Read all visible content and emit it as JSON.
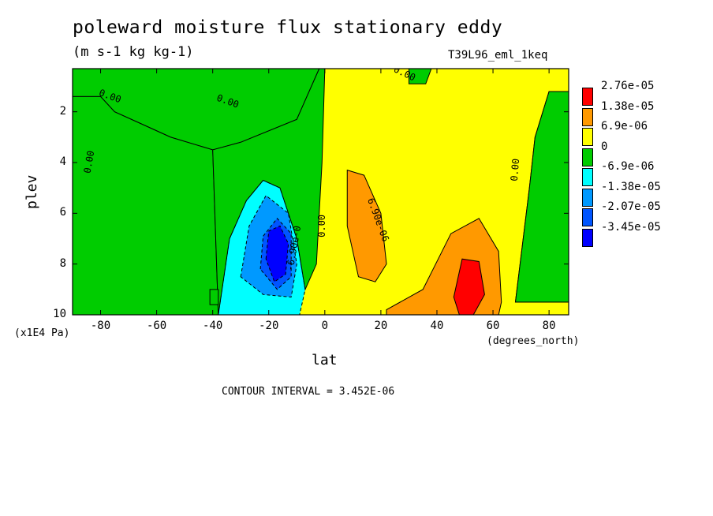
{
  "chart_data": {
    "type": "heatmap",
    "title": "poleward moisture flux stationary eddy",
    "units": "(m s-1 kg kg-1)",
    "run_label": "T39L96_eml_1keq",
    "xlabel": "lat",
    "xunit": "(degrees_north)",
    "ylabel": "plev",
    "yunit": "(x1E4 Pa)",
    "contour_interval_text": "CONTOUR INTERVAL = 3.452E-06",
    "xlim": [
      -90,
      87
    ],
    "ylim": [
      10,
      0.3
    ],
    "x_ticks": [
      {
        "v": -80,
        "t": "-80"
      },
      {
        "v": -60,
        "t": "-60"
      },
      {
        "v": -40,
        "t": "-40"
      },
      {
        "v": -20,
        "t": "-20"
      },
      {
        "v": 0,
        "t": "0"
      },
      {
        "v": 20,
        "t": "20"
      },
      {
        "v": 40,
        "t": "40"
      },
      {
        "v": 60,
        "t": "60"
      },
      {
        "v": 80,
        "t": "80"
      }
    ],
    "y_ticks": [
      {
        "v": 2,
        "t": "2"
      },
      {
        "v": 4,
        "t": "4"
      },
      {
        "v": 6,
        "t": "6"
      },
      {
        "v": 8,
        "t": "8"
      },
      {
        "v": 10,
        "t": "10"
      }
    ],
    "legend": [
      {
        "label": "2.76e-05",
        "color": "#ff0000"
      },
      {
        "label": "1.38e-05",
        "color": "#ff9900"
      },
      {
        "label": "6.9e-06",
        "color": "#ffff00"
      },
      {
        "label": "0",
        "color": "#00cc00"
      },
      {
        "label": "-6.9e-06",
        "color": "#00ffff"
      },
      {
        "label": "-1.38e-05",
        "color": "#0099ff"
      },
      {
        "label": "-2.07e-05",
        "color": "#0055ff"
      },
      {
        "label": "-3.45e-05",
        "color": "#0000ff"
      }
    ],
    "regions": [
      {
        "level": "positive",
        "color": "#ffff00",
        "points": [
          [
            -90,
            0.3
          ],
          [
            87,
            0.3
          ],
          [
            87,
            1.2
          ],
          [
            80,
            1.2
          ],
          [
            75,
            3
          ],
          [
            73,
            5
          ],
          [
            68,
            9.5
          ],
          [
            87,
            9.5
          ],
          [
            87,
            10
          ],
          [
            -90,
            10
          ],
          [
            -90,
            1.4
          ],
          [
            -80,
            1.4
          ],
          [
            -75,
            2
          ],
          [
            -65,
            2.5
          ],
          [
            -55,
            3
          ],
          [
            -40,
            3.5
          ],
          [
            -30,
            3.2
          ],
          [
            -10,
            2.3
          ],
          [
            -2,
            0.3
          ]
        ]
      },
      {
        "level": "mid",
        "color": "#ff9900",
        "points": [
          [
            8,
            4.3
          ],
          [
            14,
            4.5
          ],
          [
            20,
            6
          ],
          [
            22,
            8
          ],
          [
            18,
            8.7
          ],
          [
            12,
            8.5
          ],
          [
            8,
            6.5
          ]
        ]
      },
      {
        "level": "mid",
        "color": "#ff9900",
        "points": [
          [
            22,
            9.8
          ],
          [
            35,
            9
          ],
          [
            45,
            6.8
          ],
          [
            55,
            6.2
          ],
          [
            62,
            7.5
          ],
          [
            63,
            9.5
          ],
          [
            62,
            10
          ],
          [
            22,
            10
          ]
        ]
      },
      {
        "level": "high",
        "color": "#ff0000",
        "points": [
          [
            46,
            9.3
          ],
          [
            49,
            7.8
          ],
          [
            55,
            7.9
          ],
          [
            57,
            9.2
          ],
          [
            53,
            10
          ],
          [
            48,
            10
          ]
        ]
      },
      {
        "level": "neg",
        "color": "#00ffff",
        "points": [
          [
            -38,
            10
          ],
          [
            -34,
            7
          ],
          [
            -28,
            5.5
          ],
          [
            -22,
            4.7
          ],
          [
            -16,
            5
          ],
          [
            -10,
            7
          ],
          [
            -7,
            9
          ],
          [
            -9,
            10
          ]
        ]
      },
      {
        "level": "neg2",
        "color": "#0099ff",
        "points": [
          [
            -30,
            8.5
          ],
          [
            -27,
            6.5
          ],
          [
            -21,
            5.3
          ],
          [
            -13,
            6
          ],
          [
            -10,
            8
          ],
          [
            -12,
            9.3
          ],
          [
            -22,
            9.2
          ]
        ]
      },
      {
        "level": "neg3",
        "color": "#0055ff",
        "points": [
          [
            -23,
            8.2
          ],
          [
            -22,
            6.9
          ],
          [
            -17,
            6.2
          ],
          [
            -12,
            6.8
          ],
          [
            -12,
            8.5
          ],
          [
            -17,
            9
          ]
        ]
      },
      {
        "level": "neg4",
        "color": "#0000ff",
        "points": [
          [
            -21,
            7.8
          ],
          [
            -20,
            6.7
          ],
          [
            -16,
            6.5
          ],
          [
            -13,
            7.2
          ],
          [
            -14,
            8.4
          ],
          [
            -18,
            8.7
          ]
        ]
      },
      {
        "level": "green",
        "color": "#00cc00",
        "points": [
          [
            -90,
            0.3
          ],
          [
            -2,
            0.3
          ],
          [
            -10,
            2.3
          ],
          [
            -30,
            3.2
          ],
          [
            -40,
            3.5
          ],
          [
            -55,
            3
          ],
          [
            -65,
            2.5
          ],
          [
            -75,
            2
          ],
          [
            -80,
            1.4
          ],
          [
            -90,
            1.4
          ]
        ]
      },
      {
        "level": "green",
        "color": "#00cc00",
        "points": [
          [
            -90,
            1.4
          ],
          [
            -80,
            1.4
          ],
          [
            -75,
            2
          ],
          [
            -65,
            2.5
          ],
          [
            -55,
            3
          ],
          [
            -40,
            3.5
          ],
          [
            -38,
            10
          ],
          [
            -90,
            10
          ]
        ]
      },
      {
        "level": "green",
        "color": "#00cc00",
        "points": [
          [
            -40,
            3.5
          ],
          [
            -30,
            3.2
          ],
          [
            -10,
            2.3
          ],
          [
            -2,
            0.3
          ],
          [
            0,
            0.3
          ],
          [
            -1,
            4
          ],
          [
            -3,
            8
          ],
          [
            -7,
            9
          ],
          [
            -10,
            7
          ],
          [
            -16,
            5
          ],
          [
            -22,
            4.7
          ],
          [
            -28,
            5.5
          ],
          [
            -34,
            7
          ],
          [
            -38,
            10
          ]
        ]
      },
      {
        "level": "green",
        "color": "#00cc00",
        "points": [
          [
            87,
            1.2
          ],
          [
            80,
            1.2
          ],
          [
            75,
            3
          ],
          [
            73,
            5
          ],
          [
            68,
            9.5
          ],
          [
            87,
            9.5
          ]
        ]
      },
      {
        "level": "green",
        "color": "#00cc00",
        "points": [
          [
            -41,
            9.0
          ],
          [
            -38,
            9.0
          ],
          [
            -38,
            9.6
          ],
          [
            -41,
            9.6
          ]
        ]
      },
      {
        "level": "green",
        "color": "#00cc00",
        "points": [
          [
            30,
            0.3
          ],
          [
            38,
            0.3
          ],
          [
            36,
            0.9
          ],
          [
            30,
            0.9
          ]
        ]
      }
    ],
    "contour_labels": [
      {
        "t": "0.00",
        "x": -77,
        "y": 1.5,
        "rot": 20
      },
      {
        "t": "0.00",
        "x": -35,
        "y": 1.7,
        "rot": 20
      },
      {
        "t": "0.00",
        "x": -83,
        "y": 4.0,
        "rot": -80
      },
      {
        "t": "0.00",
        "x": 0,
        "y": 6.5,
        "rot": -90
      },
      {
        "t": "0.00",
        "x": 28,
        "y": 0.6,
        "rot": 25
      },
      {
        "t": "0.00",
        "x": 69,
        "y": 4.3,
        "rot": -85
      },
      {
        "t": "6.90e-06",
        "x": 18,
        "y": 6.3,
        "rot": 70
      },
      {
        "t": "-6.90e-0",
        "x": -10,
        "y": 7.4,
        "rot": -80
      }
    ]
  }
}
